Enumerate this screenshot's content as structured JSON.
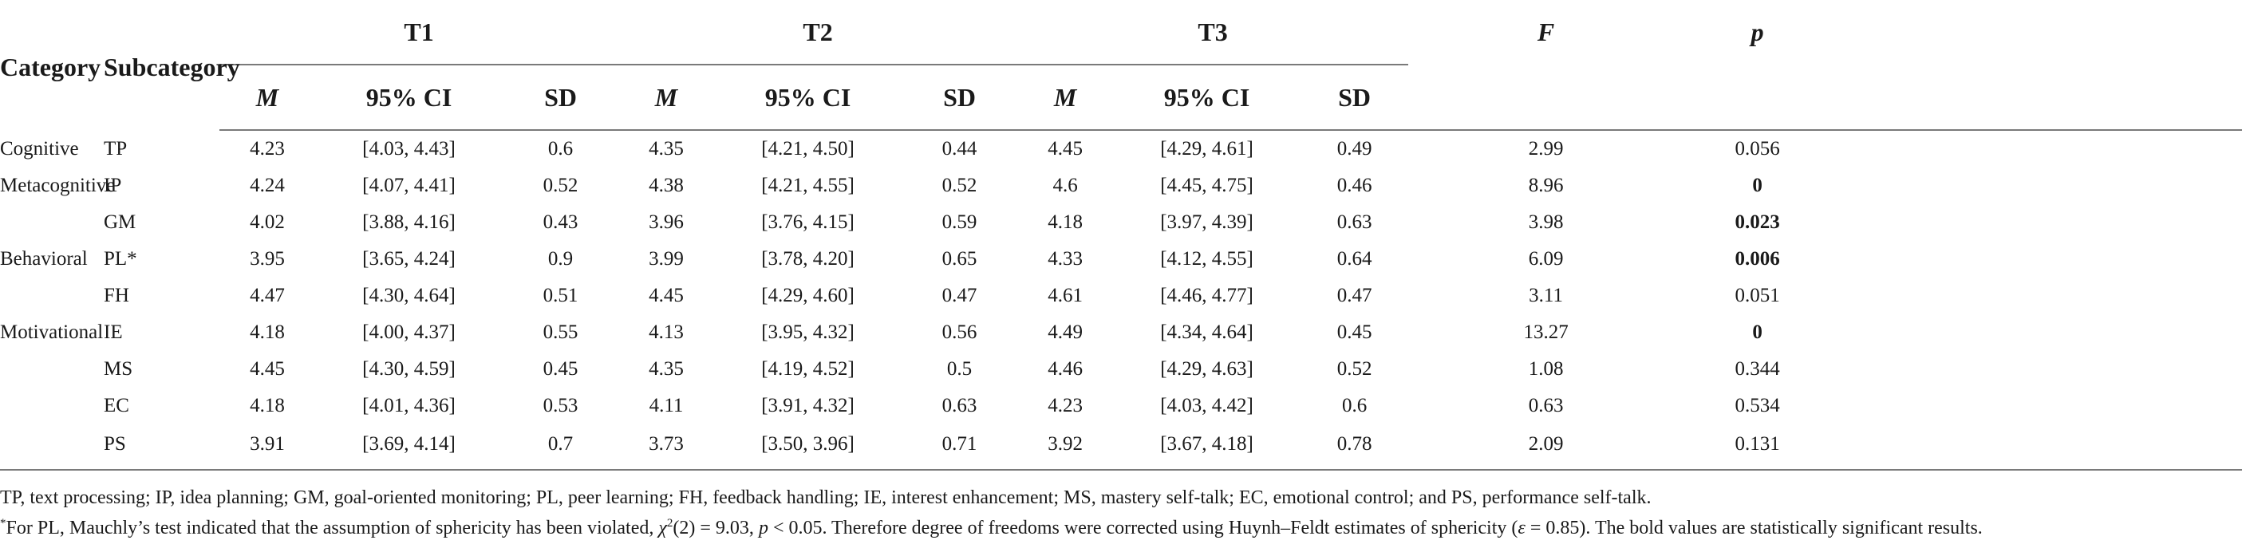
{
  "headers": {
    "category": "Category",
    "subcategory": "Subcategory",
    "groups": [
      "T1",
      "T2",
      "T3"
    ],
    "F": "F",
    "p": "p",
    "sub": [
      "M",
      "95% CI",
      "SD"
    ]
  },
  "rows": [
    {
      "category": "Cognitive",
      "subcategory": "TP",
      "t1_m": "4.23",
      "t1_ci": "[4.03, 4.43]",
      "t1_sd": "0.6",
      "t2_m": "4.35",
      "t2_ci": "[4.21, 4.50]",
      "t2_sd": "0.44",
      "t3_m": "4.45",
      "t3_ci": "[4.29, 4.61]",
      "t3_sd": "0.49",
      "F": "2.99",
      "p": "0.056",
      "p_bold": false
    },
    {
      "category": "Metacognitive",
      "subcategory": "IP",
      "t1_m": "4.24",
      "t1_ci": "[4.07, 4.41]",
      "t1_sd": "0.52",
      "t2_m": "4.38",
      "t2_ci": "[4.21, 4.55]",
      "t2_sd": "0.52",
      "t3_m": "4.6",
      "t3_ci": "[4.45, 4.75]",
      "t3_sd": "0.46",
      "F": "8.96",
      "p": "0",
      "p_bold": true
    },
    {
      "category": "",
      "subcategory": "GM",
      "t1_m": "4.02",
      "t1_ci": "[3.88, 4.16]",
      "t1_sd": "0.43",
      "t2_m": "3.96",
      "t2_ci": "[3.76, 4.15]",
      "t2_sd": "0.59",
      "t3_m": "4.18",
      "t3_ci": "[3.97, 4.39]",
      "t3_sd": "0.63",
      "F": "3.98",
      "p": "0.023",
      "p_bold": true
    },
    {
      "category": "Behavioral",
      "subcategory": "PL*",
      "t1_m": "3.95",
      "t1_ci": "[3.65, 4.24]",
      "t1_sd": "0.9",
      "t2_m": "3.99",
      "t2_ci": "[3.78, 4.20]",
      "t2_sd": "0.65",
      "t3_m": "4.33",
      "t3_ci": "[4.12, 4.55]",
      "t3_sd": "0.64",
      "F": "6.09",
      "p": "0.006",
      "p_bold": true
    },
    {
      "category": "",
      "subcategory": "FH",
      "t1_m": "4.47",
      "t1_ci": "[4.30, 4.64]",
      "t1_sd": "0.51",
      "t2_m": "4.45",
      "t2_ci": "[4.29, 4.60]",
      "t2_sd": "0.47",
      "t3_m": "4.61",
      "t3_ci": "[4.46, 4.77]",
      "t3_sd": "0.47",
      "F": "3.11",
      "p": "0.051",
      "p_bold": false
    },
    {
      "category": "Motivational",
      "subcategory": "IE",
      "t1_m": "4.18",
      "t1_ci": "[4.00, 4.37]",
      "t1_sd": "0.55",
      "t2_m": "4.13",
      "t2_ci": "[3.95, 4.32]",
      "t2_sd": "0.56",
      "t3_m": "4.49",
      "t3_ci": "[4.34, 4.64]",
      "t3_sd": "0.45",
      "F": "13.27",
      "p": "0",
      "p_bold": true
    },
    {
      "category": "",
      "subcategory": "MS",
      "t1_m": "4.45",
      "t1_ci": "[4.30, 4.59]",
      "t1_sd": "0.45",
      "t2_m": "4.35",
      "t2_ci": "[4.19, 4.52]",
      "t2_sd": "0.5",
      "t3_m": "4.46",
      "t3_ci": "[4.29, 4.63]",
      "t3_sd": "0.52",
      "F": "1.08",
      "p": "0.344",
      "p_bold": false
    },
    {
      "category": "",
      "subcategory": "EC",
      "t1_m": "4.18",
      "t1_ci": "[4.01, 4.36]",
      "t1_sd": "0.53",
      "t2_m": "4.11",
      "t2_ci": "[3.91, 4.32]",
      "t2_sd": "0.63",
      "t3_m": "4.23",
      "t3_ci": "[4.03, 4.42]",
      "t3_sd": "0.6",
      "F": "0.63",
      "p": "0.534",
      "p_bold": false
    },
    {
      "category": "",
      "subcategory": "PS",
      "t1_m": "3.91",
      "t1_ci": "[3.69, 4.14]",
      "t1_sd": "0.7",
      "t2_m": "3.73",
      "t2_ci": "[3.50, 3.96]",
      "t2_sd": "0.71",
      "t3_m": "3.92",
      "t3_ci": "[3.67, 4.18]",
      "t3_sd": "0.78",
      "F": "2.09",
      "p": "0.131",
      "p_bold": false
    }
  ],
  "footnotes": {
    "abbreviations": "TP, text processing; IP, idea planning; GM, goal-oriented monitoring; PL, peer learning; FH, feedback handling; IE, interest enhancement; MS, mastery self-talk; EC, emotional control; and PS, performance self-talk.",
    "marker": "*",
    "sphericity_a": "For PL, Mauchly’s test indicated that the assumption of sphericity has been violated, ",
    "chi": "χ",
    "chi_sup": "2",
    "chi_rest": "(2) = 9.03, ",
    "p_letter": "p",
    "p_rest": " < 0.05. Therefore degree of freedoms were corrected using Huynh–Feldt estimates of sphericity (",
    "epsilon": "ε",
    "eps_rest": " = 0.85). The bold values are statistically significant results."
  }
}
